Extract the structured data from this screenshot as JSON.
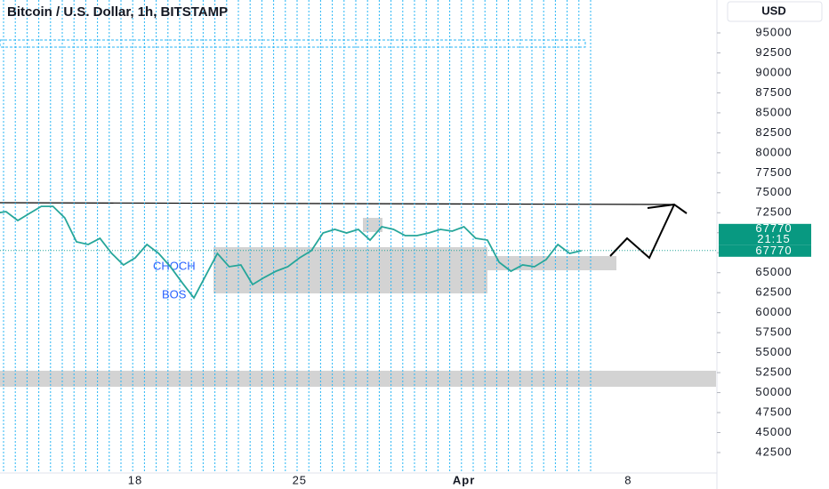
{
  "chart_data": {
    "type": "line",
    "title": "Bitcoin / U.S. Dollar, 1h, BITSTAMP",
    "currency": "USD",
    "categories": [
      null,
      null,
      null,
      null,
      null,
      null,
      null,
      null,
      null,
      null,
      null,
      null,
      "18",
      null,
      null,
      null,
      null,
      null,
      null,
      null,
      null,
      null,
      null,
      null,
      null,
      null,
      "25",
      null,
      null,
      null,
      null,
      null,
      null,
      null,
      null,
      null,
      null,
      null,
      null,
      null,
      "Apr",
      null,
      null,
      null,
      null,
      null,
      null,
      null,
      null,
      null,
      null,
      null,
      null,
      null,
      "8"
    ],
    "series": [
      {
        "name": "BTCUSD",
        "color": "#26a69a",
        "values": [
          72420,
          72640,
          71530,
          72420,
          73300,
          73300,
          71860,
          68860,
          68530,
          69300,
          67410,
          65970,
          66860,
          68530,
          67410,
          65750,
          63750,
          61850,
          64630,
          67410,
          65750,
          65970,
          63520,
          64410,
          65190,
          65750,
          66860,
          67750,
          69970,
          70420,
          69970,
          70420,
          69080,
          70750,
          70420,
          69640,
          69640,
          69970,
          70420,
          70200,
          70750,
          69300,
          69080,
          66300,
          65190,
          65970,
          65750,
          66640,
          68530,
          67410,
          67750,
          null,
          null,
          null,
          null
        ]
      }
    ],
    "ylim": [
      37940,
      99115
    ],
    "yticks": [
      42500,
      45000,
      47500,
      50000,
      52500,
      55000,
      57500,
      60000,
      62500,
      65000,
      67500,
      70000,
      72500,
      75000,
      77500,
      80000,
      82500,
      85000,
      87500,
      90000,
      92500,
      95000
    ],
    "current_price": 67770,
    "countdown": "21:15",
    "annotations": [
      "CHOCH",
      "BOS"
    ]
  }
}
